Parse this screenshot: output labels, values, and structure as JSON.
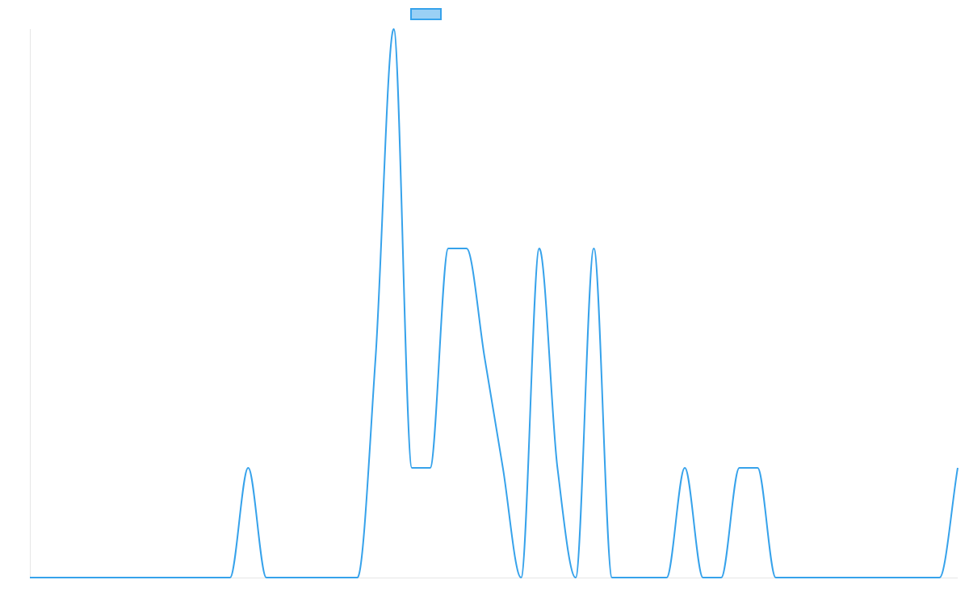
{
  "chart_data": {
    "type": "line",
    "title": "",
    "xlabel": "",
    "ylabel": "",
    "grid": false,
    "legend": {
      "position": "top-center",
      "label": ""
    },
    "colors": {
      "line": "#36a2eb",
      "fill": "#9ad0f5",
      "axis": "#e6e6e6"
    },
    "ylim": [
      0,
      5
    ],
    "x": [
      0,
      1,
      2,
      3,
      4,
      5,
      6,
      7,
      8,
      9,
      10,
      11,
      12,
      13,
      14,
      15,
      16,
      17,
      18,
      19,
      20,
      21,
      22,
      23,
      24,
      25,
      26,
      27,
      28,
      29,
      30,
      31,
      32,
      33,
      34,
      35,
      36,
      37,
      38,
      39,
      40,
      41,
      42,
      43,
      44,
      45,
      46,
      47,
      48,
      49,
      50,
      51
    ],
    "series": [
      {
        "name": "",
        "values": [
          0,
          0,
          0,
          0,
          0,
          0,
          0,
          0,
          0,
          0,
          0,
          0,
          1,
          0,
          0,
          0,
          0,
          0,
          0,
          2,
          5,
          1,
          1,
          3,
          3,
          2,
          1,
          0,
          3,
          1,
          0,
          3,
          0,
          0,
          0,
          0,
          1,
          0,
          0,
          1,
          1,
          0,
          0,
          0,
          0,
          0,
          0,
          0,
          0,
          0,
          0,
          1
        ]
      }
    ]
  }
}
